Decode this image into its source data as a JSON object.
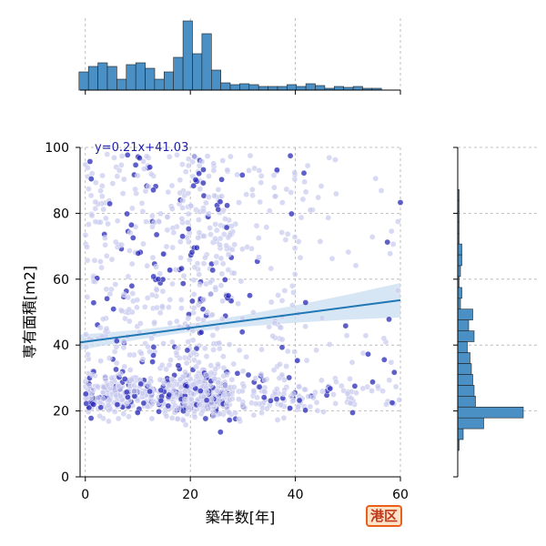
{
  "chart_data": {
    "type": "scatter",
    "title": "",
    "xlabel": "築年数[年]",
    "ylabel": "専有面積[m2]",
    "xlim": [
      -1,
      60
    ],
    "ylim": [
      0,
      100
    ],
    "xticks": [
      0,
      20,
      40,
      60
    ],
    "yticks": [
      0,
      20,
      40,
      60,
      80,
      100
    ],
    "grid": true,
    "regression": {
      "label": "y=0.21x+41.03",
      "slope": 0.21,
      "intercept": 41.03,
      "color": "#1f77b4",
      "band_color": "#c6dbef"
    },
    "point_color": "#2a2ab8",
    "point_fill": "#c7c9ee",
    "bar_color": "#4a90c4",
    "top_histogram": {
      "bin_edges_start": -1.2,
      "bin_width": 1.8,
      "counts": [
        20,
        26,
        30,
        26,
        12,
        28,
        30,
        24,
        12,
        20,
        36,
        76,
        40,
        62,
        22,
        8,
        6,
        7,
        6,
        4,
        4,
        4,
        6,
        4,
        7,
        5,
        2,
        4,
        3,
        4,
        2,
        2
      ]
    },
    "right_histogram": {
      "bin_start": 8,
      "bin_width": 3.3,
      "counts": [
        1,
        4,
        19,
        48,
        13,
        12,
        11,
        10,
        9,
        7,
        12,
        8,
        11,
        2,
        3,
        1,
        2,
        3,
        3,
        1,
        1,
        1,
        1,
        1
      ]
    }
  },
  "badge": {
    "text": "港区"
  }
}
